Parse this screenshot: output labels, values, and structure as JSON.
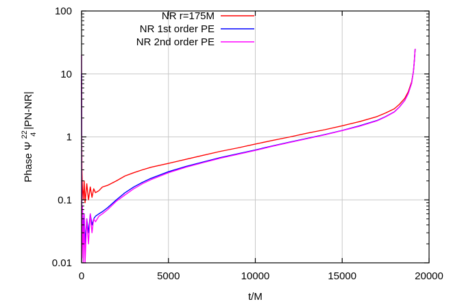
{
  "chart_data": {
    "type": "line",
    "xlabel": "t/M",
    "ylabel_main": "Phase Ψ",
    "ylabel_sup": "22",
    "ylabel_sub": "4",
    "ylabel_tail": " |PN-NR|",
    "xlim": [
      0,
      20000
    ],
    "ylim": [
      0.01,
      100
    ],
    "yscale": "log",
    "grid": true,
    "legend_position": "top-right",
    "x_ticks": [
      0,
      5000,
      10000,
      15000,
      20000
    ],
    "x_tick_labels": [
      "0",
      "5000",
      "10000",
      "15000",
      "20000"
    ],
    "y_ticks": [
      0.01,
      0.1,
      1,
      10,
      100
    ],
    "y_tick_labels": [
      "0.01",
      "0.1",
      "1",
      "10",
      "100"
    ],
    "series": [
      {
        "name": "NR r=175M",
        "color": "#ff0000",
        "x": [
          0,
          20,
          50,
          100,
          150,
          200,
          300,
          400,
          500,
          600,
          700,
          800,
          1000,
          1200,
          1500,
          2000,
          2500,
          3000,
          3500,
          4000,
          5000,
          6000,
          7000,
          8000,
          9000,
          10000,
          11000,
          12000,
          13000,
          14000,
          15000,
          16000,
          17000,
          17500,
          18000,
          18300,
          18600,
          18800,
          19000,
          19100,
          19150,
          19200
        ],
        "y": [
          8,
          0.3,
          0.15,
          0.1,
          0.2,
          0.09,
          0.18,
          0.1,
          0.16,
          0.11,
          0.15,
          0.13,
          0.14,
          0.16,
          0.17,
          0.2,
          0.24,
          0.27,
          0.3,
          0.33,
          0.38,
          0.44,
          0.51,
          0.59,
          0.67,
          0.77,
          0.88,
          1.0,
          1.15,
          1.3,
          1.5,
          1.75,
          2.1,
          2.4,
          2.8,
          3.3,
          4.1,
          5.2,
          7.5,
          11,
          16,
          25
        ]
      },
      {
        "name": "NR 1st order PE",
        "color": "#0000ff",
        "x": [
          0,
          20,
          50,
          100,
          150,
          200,
          300,
          400,
          500,
          600,
          700,
          800,
          1000,
          1200,
          1500,
          2000,
          2500,
          3000,
          3500,
          4000,
          5000,
          6000,
          7000,
          8000,
          9000,
          10000,
          11000,
          12000,
          13000,
          14000,
          15000,
          16000,
          17000,
          17500,
          18000,
          18300,
          18600,
          18800,
          19000,
          19100,
          19150,
          19200
        ],
        "y": [
          10,
          0.02,
          0.07,
          0.03,
          0.06,
          0.02,
          0.05,
          0.03,
          0.06,
          0.04,
          0.05,
          0.055,
          0.06,
          0.065,
          0.075,
          0.1,
          0.13,
          0.16,
          0.19,
          0.22,
          0.28,
          0.34,
          0.4,
          0.47,
          0.54,
          0.62,
          0.72,
          0.83,
          0.95,
          1.09,
          1.27,
          1.5,
          1.82,
          2.1,
          2.5,
          3.0,
          3.8,
          4.9,
          7.2,
          11,
          16,
          25
        ]
      },
      {
        "name": "NR 2nd order PE",
        "color": "#ff00ff",
        "x": [
          0,
          20,
          50,
          100,
          150,
          200,
          300,
          400,
          500,
          600,
          700,
          800,
          1000,
          1200,
          1500,
          2000,
          2500,
          3000,
          3500,
          4000,
          5000,
          6000,
          7000,
          8000,
          9000,
          10000,
          11000,
          12000,
          13000,
          14000,
          15000,
          16000,
          17000,
          17500,
          18000,
          18300,
          18600,
          18800,
          19000,
          19100,
          19150,
          19200
        ],
        "y": [
          20,
          0.012,
          0.08,
          0.01,
          0.06,
          0.01,
          0.05,
          0.02,
          0.06,
          0.03,
          0.05,
          0.045,
          0.055,
          0.06,
          0.07,
          0.095,
          0.12,
          0.15,
          0.18,
          0.21,
          0.27,
          0.33,
          0.39,
          0.46,
          0.53,
          0.61,
          0.71,
          0.82,
          0.94,
          1.08,
          1.26,
          1.48,
          1.8,
          2.08,
          2.48,
          2.98,
          3.78,
          4.88,
          7.1,
          11,
          16,
          25
        ]
      }
    ]
  }
}
